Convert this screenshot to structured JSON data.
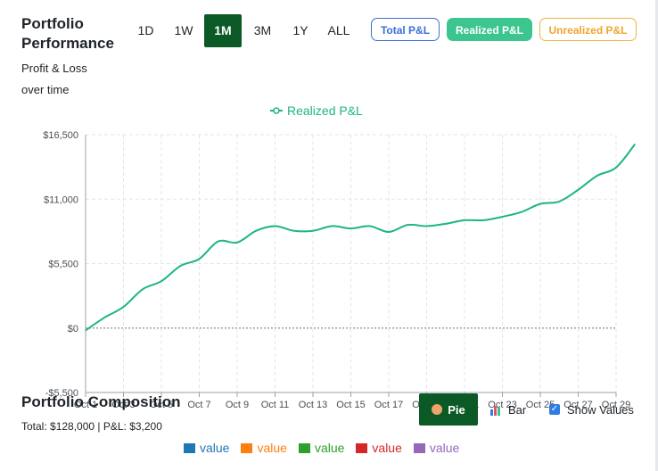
{
  "header": {
    "title": "Portfolio Performance",
    "subtitle": "Profit & Loss over time"
  },
  "time_ranges": [
    "1D",
    "1W",
    "1M",
    "3M",
    "1Y",
    "ALL"
  ],
  "time_range_selected": "1M",
  "modes": {
    "total": "Total P&L",
    "realized": "Realized P&L",
    "unrealized": "Unrealized P&L"
  },
  "colors": {
    "line": "#1db583",
    "active_range": "#0b5a26",
    "total_border": "#3a6fd6",
    "realized_fill": "#3cc58f",
    "unrealized_border": "#f0b33c"
  },
  "chart_data": {
    "type": "line",
    "title": "",
    "legend": "Realized P&L",
    "legend_position": "top-center",
    "ylim": [
      -5500,
      16500
    ],
    "yticks": [
      16500,
      11000,
      5500,
      0,
      -5500
    ],
    "ytick_labels": [
      "$16,500",
      "$11,000",
      "$5,500",
      "$0",
      "-$5,500"
    ],
    "xtick_labels": [
      "Oct 1",
      "Oct 3",
      "Oct 5",
      "Oct 7",
      "Oct 9",
      "Oct 11",
      "Oct 13",
      "Oct 15",
      "Oct 17",
      "Oct 19",
      "Oct 21",
      "Oct 23",
      "Oct 25",
      "Oct 27",
      "Oct 29"
    ],
    "grid": true,
    "series": [
      {
        "name": "Realized P&L",
        "x": [
          0,
          0.5,
          1,
          1.5,
          2,
          2.5,
          3,
          3.5,
          4,
          4.5,
          5,
          5.5,
          6,
          6.5,
          7,
          7.5,
          8,
          8.5,
          9,
          9.5,
          10,
          10.5,
          11,
          11.5,
          12,
          12.5,
          13,
          13.5,
          14,
          14.5
        ],
        "values": [
          -200,
          900,
          1800,
          3300,
          4000,
          5300,
          5900,
          7400,
          7300,
          8300,
          8700,
          8300,
          8300,
          8700,
          8500,
          8700,
          8200,
          8800,
          8700,
          8900,
          9200,
          9200,
          9500,
          9900,
          10600,
          10800,
          11800,
          13000,
          13700,
          15700
        ]
      }
    ]
  },
  "composition": {
    "title": "Portfolio Composition",
    "summary": "Total: $128,000 | P&L: $3,200",
    "pie_label": "Pie",
    "bar_label": "Bar",
    "show_values_label": "Show Values",
    "legend": [
      {
        "label": "value",
        "color": "#1f77b4"
      },
      {
        "label": "value",
        "color": "#ff7f0e"
      },
      {
        "label": "value",
        "color": "#2ca02c"
      },
      {
        "label": "value",
        "color": "#d62728"
      },
      {
        "label": "value",
        "color": "#9467bd"
      }
    ]
  }
}
